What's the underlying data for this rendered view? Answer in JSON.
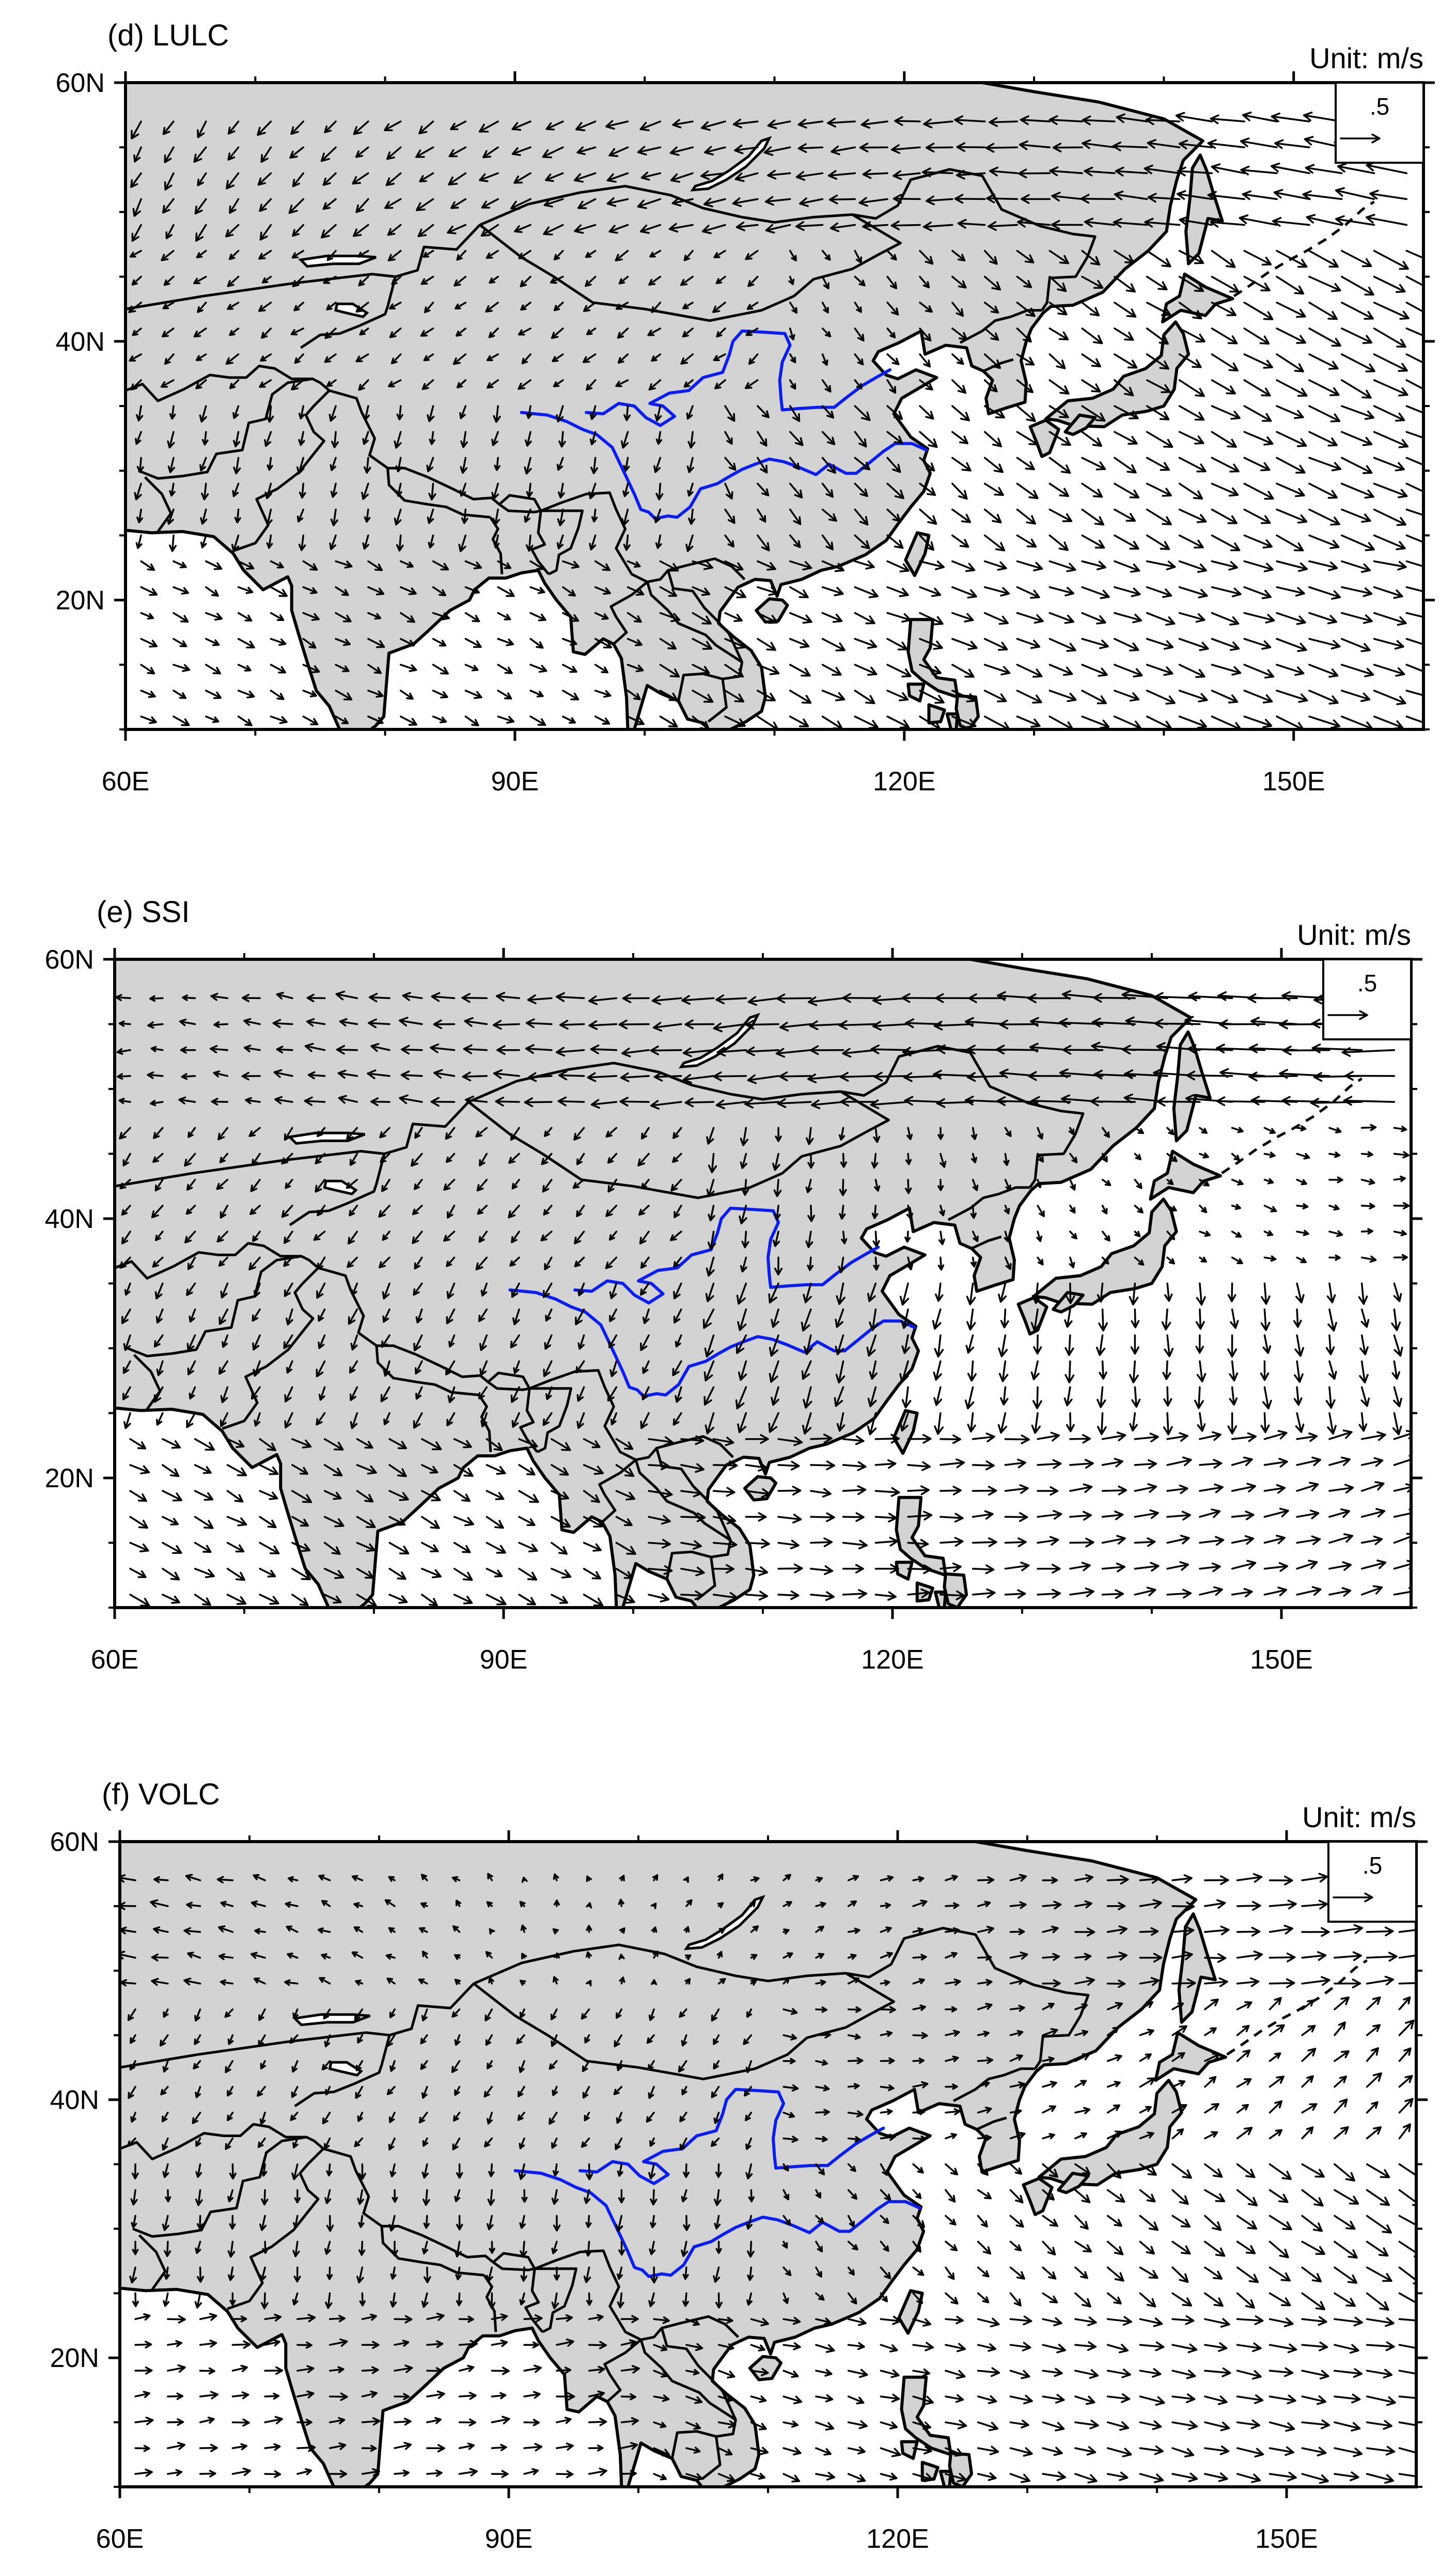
{
  "figure": {
    "panels": [
      {
        "id": "d",
        "title": "(d) LULC",
        "unit_label": "Unit: m/s",
        "reference_vector_label": ".5",
        "x_ticks": [
          "60E",
          "90E",
          "120E",
          "150E"
        ],
        "y_ticks": [
          "60N",
          "40N",
          "20N"
        ]
      },
      {
        "id": "e",
        "title": "(e) SSI",
        "unit_label": "Unit: m/s",
        "reference_vector_label": ".5",
        "x_ticks": [
          "60E",
          "90E",
          "120E",
          "150E"
        ],
        "y_ticks": [
          "60N",
          "40N",
          "20N"
        ]
      },
      {
        "id": "f",
        "title": "(f) VOLC",
        "unit_label": "Unit: m/s",
        "reference_vector_label": ".5",
        "x_ticks": [
          "60E",
          "90E",
          "120E",
          "150E"
        ],
        "y_ticks": [
          "60N",
          "40N",
          "20N"
        ]
      }
    ],
    "map": {
      "lon_range": [
        60,
        160
      ],
      "lat_range": [
        10,
        60
      ],
      "reference_vector_magnitude": 0.5,
      "vector_units": "m/s",
      "land_color": "#d3d3d3",
      "ocean_color": "#ffffff",
      "river_color": "#0a1ef0",
      "vector_color": "#000000"
    }
  }
}
